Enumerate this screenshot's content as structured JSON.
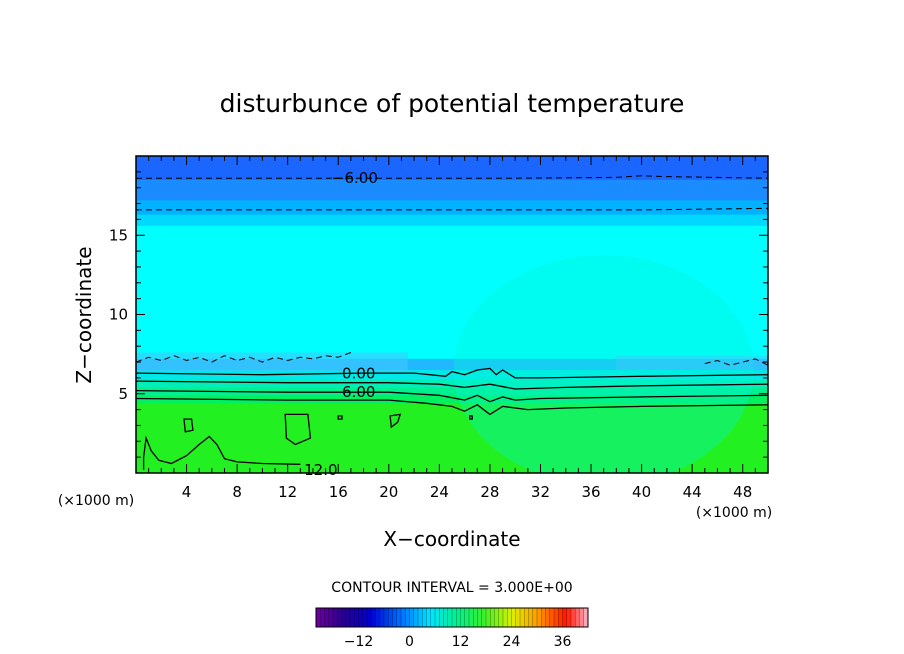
{
  "chart_data": {
    "type": "heatmap",
    "title": "disturbunce of potential temperature",
    "xlabel": "X−coordinate",
    "ylabel": "Z−coordinate",
    "x_unit_left": "(×1000 m)",
    "x_unit_right": "(×1000 m)",
    "xlim": [
      0,
      50
    ],
    "ylim": [
      0,
      20
    ],
    "x_ticks": [
      {
        "value": 4,
        "label": "4"
      },
      {
        "value": 8,
        "label": "8"
      },
      {
        "value": 12,
        "label": "12"
      },
      {
        "value": 16,
        "label": "16"
      },
      {
        "value": 20,
        "label": "20"
      },
      {
        "value": 24,
        "label": "24"
      },
      {
        "value": 28,
        "label": "28"
      },
      {
        "value": 32,
        "label": "32"
      },
      {
        "value": 36,
        "label": "36"
      },
      {
        "value": 40,
        "label": "40"
      },
      {
        "value": 44,
        "label": "44"
      },
      {
        "value": 48,
        "label": "48"
      }
    ],
    "y_ticks": [
      {
        "value": 5,
        "label": "5"
      },
      {
        "value": 10,
        "label": "10"
      },
      {
        "value": 15,
        "label": "15"
      }
    ],
    "bands": [
      {
        "z0": 18.5,
        "z1": 20,
        "color": "#1a66ff"
      },
      {
        "z0": 17.2,
        "z1": 18.5,
        "color": "#1a8cff"
      },
      {
        "z0": 16.3,
        "z1": 17.2,
        "color": "#00b2ff"
      },
      {
        "z0": 15.6,
        "z1": 16.3,
        "color": "#00d8ff"
      },
      {
        "z0": 7.2,
        "z1": 15.6,
        "color": "#00ffff"
      },
      {
        "z0": 6.5,
        "z1": 7.2,
        "color": "#22b8ff"
      },
      {
        "z0": 5.9,
        "z1": 6.5,
        "color": "#00e8e8"
      },
      {
        "z0": 5.4,
        "z1": 5.9,
        "color": "#00eeb8"
      },
      {
        "z0": 4.9,
        "z1": 5.4,
        "color": "#00f090"
      },
      {
        "z0": 4.4,
        "z1": 4.9,
        "color": "#00f060"
      },
      {
        "z0": 0,
        "z1": 4.4,
        "color": "#22f020"
      }
    ],
    "contours": [
      {
        "level": -6.0,
        "label": "−6.00",
        "style": "dashed",
        "label_x": 15.5,
        "points": [
          [
            0,
            18.6
          ],
          [
            10,
            18.6
          ],
          [
            20,
            18.6
          ],
          [
            30,
            18.6
          ],
          [
            38,
            18.65
          ],
          [
            40,
            18.75
          ],
          [
            42,
            18.7
          ],
          [
            50,
            18.6
          ]
        ]
      },
      {
        "level": -3.0,
        "label": "",
        "style": "dashed",
        "points": [
          [
            0,
            16.6
          ],
          [
            10,
            16.6
          ],
          [
            25,
            16.6
          ],
          [
            40,
            16.6
          ],
          [
            50,
            16.7
          ]
        ]
      },
      {
        "level": -3.0,
        "label": "",
        "style": "dashed",
        "points": [
          [
            0,
            7.0
          ],
          [
            1,
            7.3
          ],
          [
            2,
            7.1
          ],
          [
            3,
            7.4
          ],
          [
            4,
            7.1
          ],
          [
            5,
            7.3
          ],
          [
            6,
            7.0
          ],
          [
            7,
            7.4
          ],
          [
            8,
            7.1
          ],
          [
            9,
            7.3
          ],
          [
            10,
            7.0
          ],
          [
            11,
            7.3
          ],
          [
            12,
            7.1
          ],
          [
            13,
            7.3
          ],
          [
            14,
            7.2
          ],
          [
            15,
            7.4
          ],
          [
            16,
            7.3
          ],
          [
            17,
            7.6
          ]
        ]
      },
      {
        "level": -3.0,
        "label": "",
        "style": "dashed",
        "points": [
          [
            45,
            6.9
          ],
          [
            46,
            7.1
          ],
          [
            47,
            6.8
          ],
          [
            48,
            7.0
          ],
          [
            49,
            7.2
          ],
          [
            50,
            6.8
          ]
        ]
      },
      {
        "level": 0.0,
        "label": "0.00",
        "style": "solid",
        "label_x": 16.3,
        "points": [
          [
            0,
            6.3
          ],
          [
            10,
            6.2
          ],
          [
            18,
            6.3
          ],
          [
            22,
            6.3
          ],
          [
            24.5,
            6.1
          ],
          [
            25,
            6.4
          ],
          [
            26,
            6.2
          ],
          [
            27,
            6.5
          ],
          [
            28,
            6.6
          ],
          [
            28.5,
            6.2
          ],
          [
            29,
            6.5
          ],
          [
            30,
            6.0
          ],
          [
            32,
            6.0
          ],
          [
            40,
            6.1
          ],
          [
            50,
            6.2
          ]
        ]
      },
      {
        "level": 3.0,
        "label": "",
        "style": "solid",
        "points": [
          [
            0,
            5.8
          ],
          [
            12,
            5.7
          ],
          [
            20,
            5.7
          ],
          [
            24,
            5.6
          ],
          [
            26,
            5.4
          ],
          [
            28,
            5.6
          ],
          [
            30,
            5.3
          ],
          [
            34,
            5.4
          ],
          [
            40,
            5.5
          ],
          [
            50,
            5.6
          ]
        ]
      },
      {
        "level": 6.0,
        "label": "6.00",
        "style": "solid",
        "label_x": 16.3,
        "points": [
          [
            0,
            5.2
          ],
          [
            12,
            5.1
          ],
          [
            20,
            5.1
          ],
          [
            24,
            4.9
          ],
          [
            26,
            4.6
          ],
          [
            27,
            4.9
          ],
          [
            28,
            4.5
          ],
          [
            29,
            4.8
          ],
          [
            30,
            4.6
          ],
          [
            32,
            4.7
          ],
          [
            40,
            4.8
          ],
          [
            50,
            4.9
          ]
        ]
      },
      {
        "level": 9.0,
        "label": "",
        "style": "solid",
        "points": [
          [
            0,
            4.7
          ],
          [
            12,
            4.6
          ],
          [
            20,
            4.6
          ],
          [
            23,
            4.4
          ],
          [
            25,
            4.2
          ],
          [
            26,
            3.9
          ],
          [
            27,
            4.3
          ],
          [
            28,
            3.7
          ],
          [
            29,
            4.2
          ],
          [
            31,
            4.0
          ],
          [
            34,
            4.1
          ],
          [
            40,
            4.2
          ],
          [
            50,
            4.3
          ]
        ]
      },
      {
        "level": 12.0,
        "label": "12.0",
        "style": "solid",
        "label_x": 13.3,
        "points": [
          [
            0.6,
            0.2
          ],
          [
            0.6,
            1.0
          ],
          [
            0.8,
            2.2
          ],
          [
            1.2,
            1.4
          ],
          [
            1.8,
            0.8
          ],
          [
            2.8,
            0.6
          ],
          [
            4,
            1.1
          ],
          [
            5,
            1.8
          ],
          [
            5.8,
            2.3
          ],
          [
            6.4,
            1.8
          ],
          [
            7,
            0.9
          ],
          [
            8,
            0.7
          ],
          [
            10,
            0.6
          ],
          [
            13,
            0.55
          ]
        ]
      },
      {
        "level": 12.0,
        "label": "",
        "style": "solid",
        "closed": true,
        "points": [
          [
            3.8,
            3.4
          ],
          [
            4.4,
            3.4
          ],
          [
            4.5,
            2.7
          ],
          [
            3.9,
            2.6
          ]
        ]
      },
      {
        "level": 12.0,
        "label": "",
        "style": "solid",
        "closed": true,
        "points": [
          [
            11.8,
            3.7
          ],
          [
            13.6,
            3.7
          ],
          [
            13.8,
            2.2
          ],
          [
            12.6,
            1.8
          ],
          [
            11.9,
            2.2
          ]
        ]
      },
      {
        "level": 12.0,
        "label": "",
        "style": "solid",
        "closed": true,
        "points": [
          [
            20.1,
            3.6
          ],
          [
            20.9,
            3.7
          ],
          [
            20.7,
            3.2
          ],
          [
            20.2,
            2.9
          ]
        ]
      },
      {
        "level": 12.0,
        "label": "",
        "style": "solid",
        "closed": true,
        "points": [
          [
            16.0,
            3.6
          ],
          [
            16.3,
            3.6
          ],
          [
            16.3,
            3.4
          ],
          [
            16.0,
            3.4
          ]
        ]
      },
      {
        "level": 12.0,
        "label": "",
        "style": "solid",
        "closed": true,
        "points": [
          [
            26.4,
            3.6
          ],
          [
            26.6,
            3.6
          ],
          [
            26.6,
            3.4
          ],
          [
            26.4,
            3.4
          ]
        ]
      }
    ],
    "contour_interval_text": "CONTOUR INTERVAL = 3.000E+00",
    "colorbar": {
      "min": -22,
      "max": 42,
      "ticks": [
        {
          "value": -12,
          "label": "−12"
        },
        {
          "value": 0,
          "label": "0"
        },
        {
          "value": 12,
          "label": "12"
        },
        {
          "value": 24,
          "label": "24"
        },
        {
          "value": 36,
          "label": "36"
        }
      ]
    }
  }
}
